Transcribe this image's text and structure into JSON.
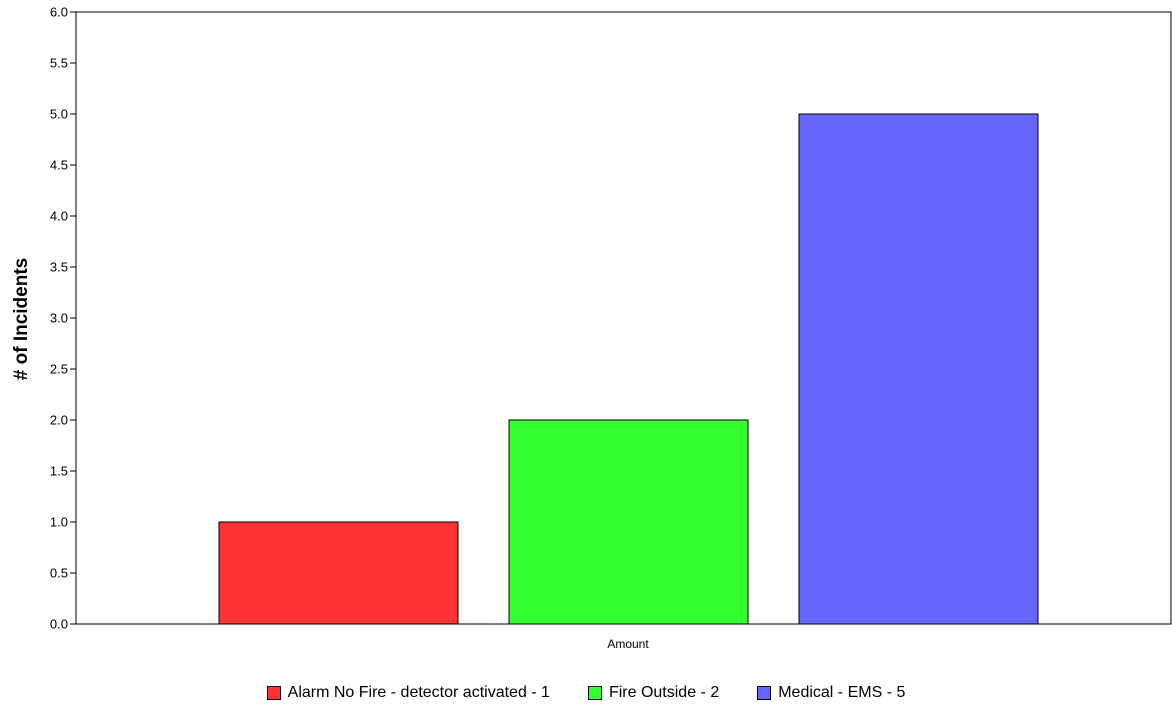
{
  "chart_data": {
    "type": "bar",
    "categories": [
      "Amount"
    ],
    "series": [
      {
        "name": "Alarm No Fire - detector activated - 1",
        "values": [
          1
        ],
        "color": "#ff3333"
      },
      {
        "name": "Fire Outside - 2",
        "values": [
          2
        ],
        "color": "#33ff33"
      },
      {
        "name": "Medical - EMS - 5",
        "values": [
          5
        ],
        "color": "#6666ff"
      }
    ],
    "title": "",
    "xlabel": "",
    "ylabel": "# of Incidents",
    "ylim": [
      0,
      6
    ],
    "yticks": [
      "0.0",
      "0.5",
      "1.0",
      "1.5",
      "2.0",
      "2.5",
      "3.0",
      "3.5",
      "4.0",
      "4.5",
      "5.0",
      "5.5",
      "6.0"
    ],
    "grid": false,
    "legend_position": "bottom"
  }
}
